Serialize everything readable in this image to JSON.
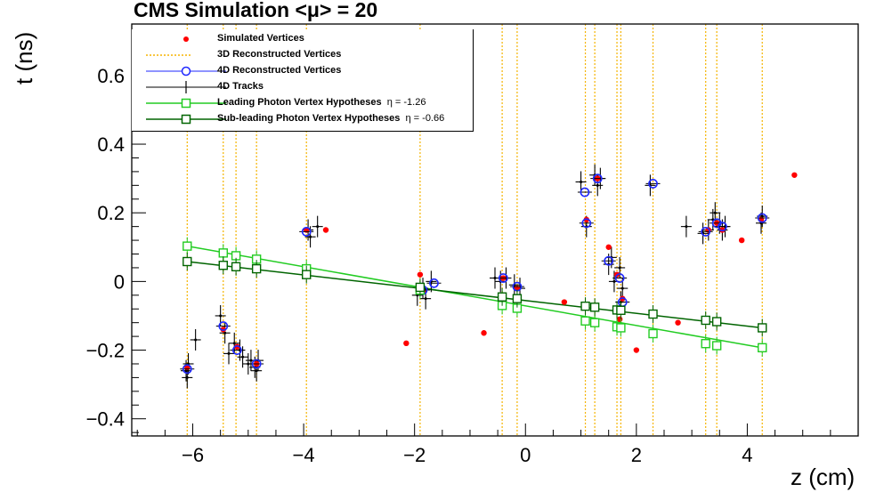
{
  "title": "CMS Simulation <μ> = 20",
  "chart_data": {
    "type": "scatter",
    "xlabel": "z (cm)",
    "ylabel": "t (ns)",
    "xlim": [
      -7.1,
      6.0
    ],
    "ylim": [
      -0.45,
      0.75
    ],
    "xticks": [
      "−6",
      "−4",
      "−2",
      "0",
      "2",
      "4"
    ],
    "xtick_values": [
      -6,
      -4,
      -2,
      0,
      2,
      4
    ],
    "yticks": [
      "−0.4",
      "−0.2",
      "0",
      "0.2",
      "0.4",
      "0.6"
    ],
    "ytick_values": [
      -0.4,
      -0.2,
      0,
      0.2,
      0.4,
      0.6
    ],
    "legend_placement": "top-left",
    "legend": [
      {
        "label": "Simulated Vertices",
        "color": "#ff0000",
        "style": "dot"
      },
      {
        "label": "3D Reconstructed Vertices",
        "color": "#f5b400",
        "style": "dotted-line"
      },
      {
        "label": "4D Reconstructed Vertices",
        "color": "#1f28ff",
        "style": "open-circle"
      },
      {
        "label": "4D Tracks",
        "color": "#000000",
        "style": "cross"
      },
      {
        "label": "Leading Photon Vertex Hypotheses",
        "eta_label": "η = -1.26",
        "color": "#22cc22",
        "style": "open-square-line"
      },
      {
        "label": "Sub-leading Photon Vertex Hypotheses",
        "eta_label": "η = -0.66",
        "color": "#006400",
        "style": "open-square-line"
      }
    ],
    "series": [
      {
        "name": "Simulated Vertices",
        "points": [
          [
            -6.1,
            -0.25
          ],
          [
            -5.45,
            -0.14
          ],
          [
            -5.2,
            -0.19
          ],
          [
            -4.85,
            -0.24
          ],
          [
            -3.95,
            0.15
          ],
          [
            -3.6,
            0.15
          ],
          [
            -2.15,
            -0.18
          ],
          [
            -1.9,
            0.02
          ],
          [
            -1.85,
            -0.03
          ],
          [
            -0.75,
            -0.15
          ],
          [
            -0.4,
            0.01
          ],
          [
            -0.15,
            -0.02
          ],
          [
            0.7,
            -0.06
          ],
          [
            1.1,
            0.18
          ],
          [
            1.3,
            0.3
          ],
          [
            1.5,
            0.1
          ],
          [
            1.65,
            0.02
          ],
          [
            1.75,
            -0.05
          ],
          [
            1.7,
            -0.11
          ],
          [
            2.0,
            -0.2
          ],
          [
            2.75,
            -0.12
          ],
          [
            3.3,
            0.15
          ],
          [
            3.45,
            0.17
          ],
          [
            3.55,
            0.15
          ],
          [
            3.9,
            0.12
          ],
          [
            4.25,
            0.18
          ],
          [
            4.85,
            0.31
          ]
        ]
      },
      {
        "name": "3D Reconstructed Vertices",
        "x": [
          -6.1,
          -5.45,
          -5.22,
          -4.85,
          -3.95,
          -1.9,
          -0.42,
          -0.15,
          1.08,
          1.25,
          1.65,
          1.72,
          2.3,
          3.25,
          3.45,
          4.27
        ]
      },
      {
        "name": "4D Reconstructed Vertices",
        "points": [
          [
            -6.1,
            -0.255
          ],
          [
            -5.45,
            -0.13
          ],
          [
            -5.2,
            -0.2
          ],
          [
            -4.85,
            -0.24
          ],
          [
            -3.95,
            0.145
          ],
          [
            -1.85,
            -0.025
          ],
          [
            -1.65,
            -0.005
          ],
          [
            -0.4,
            0.01
          ],
          [
            -0.15,
            -0.015
          ],
          [
            1.07,
            0.26
          ],
          [
            1.1,
            0.17
          ],
          [
            1.3,
            0.3
          ],
          [
            1.5,
            0.06
          ],
          [
            1.7,
            0.01
          ],
          [
            1.75,
            -0.06
          ],
          [
            2.3,
            0.285
          ],
          [
            3.25,
            0.145
          ],
          [
            3.45,
            0.17
          ],
          [
            3.55,
            0.16
          ],
          [
            4.27,
            0.185
          ]
        ]
      },
      {
        "name": "4D Tracks",
        "points": [
          [
            -6.12,
            -0.26
          ],
          [
            -6.08,
            -0.24
          ],
          [
            -6.1,
            -0.28
          ],
          [
            -5.5,
            -0.1
          ],
          [
            -5.42,
            -0.15
          ],
          [
            -5.95,
            -0.17
          ],
          [
            -5.35,
            -0.21
          ],
          [
            -5.25,
            -0.18
          ],
          [
            -5.15,
            -0.2
          ],
          [
            -5.1,
            -0.22
          ],
          [
            -5.0,
            -0.24
          ],
          [
            -4.95,
            -0.23
          ],
          [
            -4.88,
            -0.25
          ],
          [
            -4.82,
            -0.23
          ],
          [
            -4.85,
            -0.26
          ],
          [
            -3.92,
            0.15
          ],
          [
            -3.88,
            0.13
          ],
          [
            -3.75,
            0.16
          ],
          [
            -1.95,
            -0.04
          ],
          [
            -1.85,
            -0.02
          ],
          [
            -1.8,
            -0.05
          ],
          [
            -1.7,
            0.0
          ],
          [
            -0.55,
            0.01
          ],
          [
            -0.45,
            0.0
          ],
          [
            -0.35,
            0.01
          ],
          [
            -0.2,
            -0.01
          ],
          [
            -0.1,
            -0.02
          ],
          [
            1.0,
            0.29
          ],
          [
            1.1,
            0.16
          ],
          [
            1.25,
            0.31
          ],
          [
            1.3,
            0.28
          ],
          [
            1.35,
            0.3
          ],
          [
            1.5,
            0.05
          ],
          [
            1.55,
            0.07
          ],
          [
            1.6,
            0.0
          ],
          [
            1.7,
            0.04
          ],
          [
            1.75,
            -0.02
          ],
          [
            1.72,
            -0.06
          ],
          [
            2.25,
            0.28
          ],
          [
            2.9,
            0.16
          ],
          [
            3.2,
            0.14
          ],
          [
            3.3,
            0.15
          ],
          [
            3.38,
            0.18
          ],
          [
            3.42,
            0.2
          ],
          [
            3.5,
            0.17
          ],
          [
            3.55,
            0.15
          ],
          [
            3.6,
            0.16
          ],
          [
            4.27,
            0.19
          ],
          [
            4.25,
            0.17
          ]
        ]
      },
      {
        "name": "Leading Photon Vertex Hypotheses",
        "points": [
          [
            -6.1,
            0.103
          ],
          [
            -5.45,
            0.083
          ],
          [
            -5.22,
            0.075
          ],
          [
            -4.85,
            0.065
          ],
          [
            -3.95,
            0.037
          ],
          [
            -1.9,
            -0.025
          ],
          [
            -0.42,
            -0.07
          ],
          [
            -0.15,
            -0.078
          ],
          [
            1.08,
            -0.115
          ],
          [
            1.25,
            -0.12
          ],
          [
            1.65,
            -0.132
          ],
          [
            1.72,
            -0.135
          ],
          [
            2.3,
            -0.152
          ],
          [
            3.25,
            -0.181
          ],
          [
            3.45,
            -0.187
          ],
          [
            4.27,
            -0.193
          ]
        ]
      },
      {
        "name": "Sub-leading Photon Vertex Hypotheses",
        "points": [
          [
            -6.1,
            0.058
          ],
          [
            -5.45,
            0.047
          ],
          [
            -5.22,
            0.043
          ],
          [
            -4.85,
            0.037
          ],
          [
            -3.95,
            0.02
          ],
          [
            -1.9,
            -0.017
          ],
          [
            -0.42,
            -0.045
          ],
          [
            -0.15,
            -0.05
          ],
          [
            1.08,
            -0.072
          ],
          [
            1.25,
            -0.075
          ],
          [
            1.65,
            -0.083
          ],
          [
            1.72,
            -0.084
          ],
          [
            2.3,
            -0.095
          ],
          [
            3.25,
            -0.113
          ],
          [
            3.45,
            -0.117
          ],
          [
            4.27,
            -0.135
          ]
        ]
      }
    ]
  }
}
